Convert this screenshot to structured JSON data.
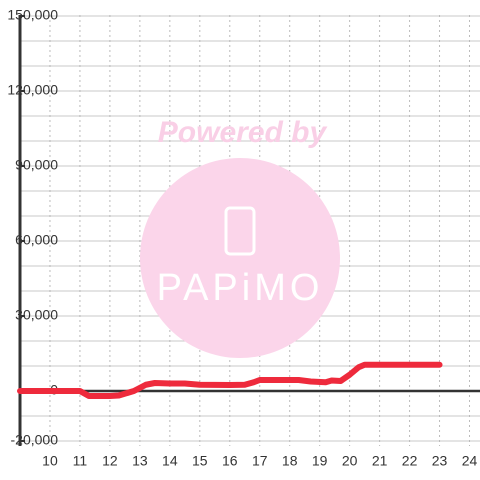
{
  "watermark": {
    "title": "Powered by",
    "brand": "PAPiMO"
  },
  "chart_data": {
    "type": "line",
    "x": [
      9,
      10.5,
      11,
      11.3,
      12,
      12.3,
      12.8,
      13.2,
      13.5,
      14,
      14.5,
      15,
      16,
      16.5,
      16.8,
      17,
      18,
      18.3,
      18.7,
      19.2,
      19.4,
      19.7,
      20,
      20.3,
      20.5,
      21,
      22,
      23
    ],
    "series": [
      {
        "color": "#ee2a3c",
        "values": [
          0,
          0,
          0,
          -2000,
          -2000,
          -1800,
          0,
          2500,
          3200,
          3000,
          3000,
          2500,
          2400,
          2500,
          3500,
          4400,
          4400,
          4400,
          3800,
          3500,
          4200,
          4000,
          6500,
          9500,
          10500,
          10500,
          10500,
          10500
        ]
      }
    ],
    "xlim": [
      9,
      24.35
    ],
    "xticks": [
      10,
      11,
      12,
      13,
      14,
      15,
      16,
      17,
      18,
      19,
      20,
      21,
      22,
      23,
      24
    ],
    "ylim": [
      -22000,
      150400
    ],
    "yticks": [
      {
        "value": -20000,
        "label": "-20,000"
      },
      0,
      {
        "value": 30000,
        "label": "30,000"
      },
      {
        "value": 60000,
        "label": "60,000"
      },
      {
        "value": 90000,
        "label": "90,000"
      },
      {
        "value": 120000,
        "label": "120,000"
      },
      {
        "value": 150000,
        "label": "150,000"
      }
    ],
    "ygrid": [
      -20000,
      -10000,
      0,
      10000,
      20000,
      30000,
      40000,
      50000,
      60000,
      70000,
      80000,
      90000,
      100000,
      110000,
      120000,
      130000,
      140000,
      150000
    ],
    "grid": true
  }
}
